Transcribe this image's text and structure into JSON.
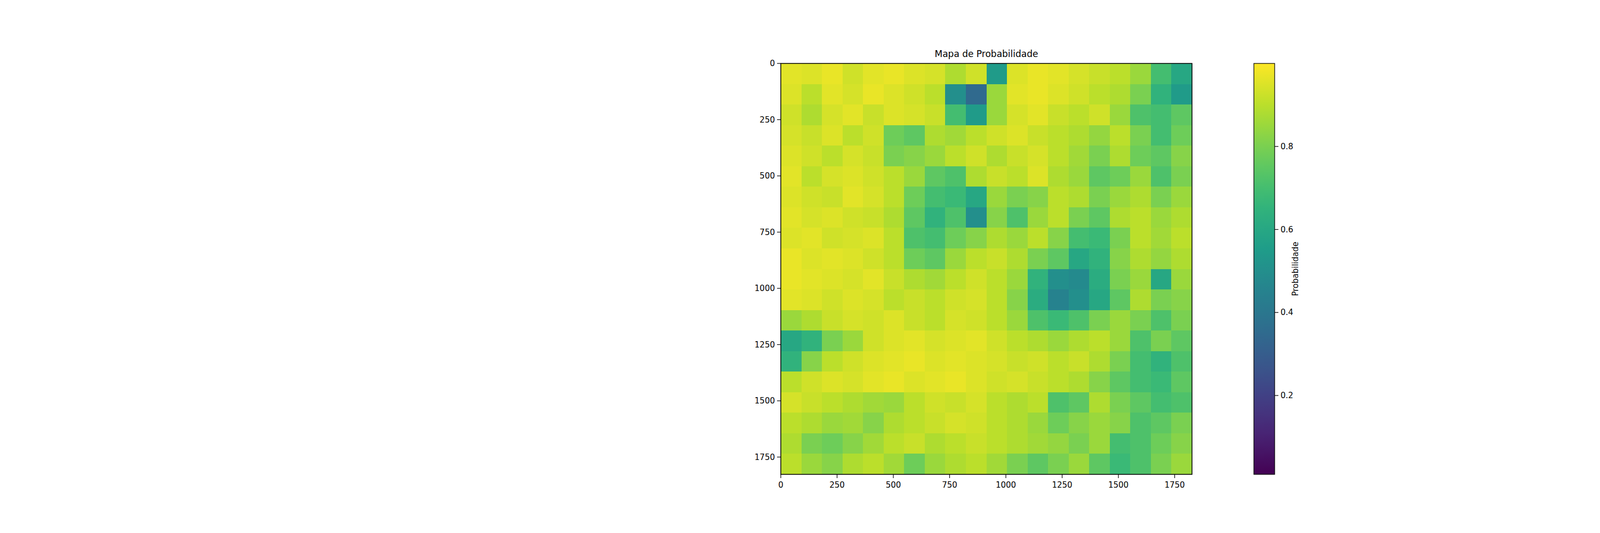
{
  "chart_data": {
    "type": "heatmap",
    "title": "Mapa de Probabilidade",
    "xlim": [
      0,
      1827
    ],
    "ylim": [
      1827,
      0
    ],
    "xticks": [
      0,
      250,
      500,
      750,
      1000,
      1250,
      1500,
      1750
    ],
    "yticks": [
      0,
      250,
      500,
      750,
      1000,
      1250,
      1500,
      1750
    ],
    "colorbar_label": "Probabilidade",
    "colorbar_range": [
      0.01,
      1.0
    ],
    "colorbar_ticks": [
      0.2,
      0.4,
      0.6,
      0.8
    ],
    "cells": [
      [
        0.96,
        0.95,
        0.97,
        0.93,
        0.96,
        0.97,
        0.95,
        0.94,
        0.88,
        0.93,
        0.55,
        0.95,
        0.97,
        0.96,
        0.94,
        0.92,
        0.9,
        0.85,
        0.7,
        0.6
      ],
      [
        0.95,
        0.9,
        0.96,
        0.94,
        0.97,
        0.95,
        0.93,
        0.9,
        0.5,
        0.35,
        0.85,
        0.96,
        0.97,
        0.95,
        0.93,
        0.9,
        0.88,
        0.8,
        0.65,
        0.55
      ],
      [
        0.93,
        0.88,
        0.94,
        0.96,
        0.92,
        0.95,
        0.94,
        0.92,
        0.7,
        0.55,
        0.85,
        0.94,
        0.96,
        0.92,
        0.9,
        0.93,
        0.85,
        0.72,
        0.7,
        0.75
      ],
      [
        0.94,
        0.92,
        0.95,
        0.9,
        0.93,
        0.78,
        0.75,
        0.88,
        0.86,
        0.9,
        0.93,
        0.95,
        0.92,
        0.9,
        0.88,
        0.84,
        0.9,
        0.8,
        0.7,
        0.78
      ],
      [
        0.95,
        0.93,
        0.9,
        0.94,
        0.92,
        0.8,
        0.82,
        0.85,
        0.9,
        0.93,
        0.88,
        0.92,
        0.94,
        0.9,
        0.86,
        0.8,
        0.88,
        0.78,
        0.75,
        0.82
      ],
      [
        0.96,
        0.9,
        0.94,
        0.95,
        0.93,
        0.9,
        0.85,
        0.75,
        0.72,
        0.88,
        0.92,
        0.9,
        0.95,
        0.88,
        0.85,
        0.75,
        0.78,
        0.85,
        0.72,
        0.8
      ],
      [
        0.95,
        0.93,
        0.92,
        0.96,
        0.94,
        0.9,
        0.78,
        0.7,
        0.68,
        0.6,
        0.85,
        0.8,
        0.82,
        0.9,
        0.88,
        0.8,
        0.85,
        0.88,
        0.8,
        0.85
      ],
      [
        0.96,
        0.94,
        0.95,
        0.93,
        0.92,
        0.88,
        0.75,
        0.65,
        0.72,
        0.5,
        0.82,
        0.72,
        0.85,
        0.9,
        0.8,
        0.75,
        0.88,
        0.9,
        0.85,
        0.88
      ],
      [
        0.95,
        0.96,
        0.93,
        0.94,
        0.95,
        0.9,
        0.72,
        0.7,
        0.78,
        0.82,
        0.88,
        0.85,
        0.9,
        0.82,
        0.7,
        0.68,
        0.8,
        0.9,
        0.86,
        0.9
      ],
      [
        0.97,
        0.95,
        0.96,
        0.95,
        0.93,
        0.9,
        0.78,
        0.75,
        0.85,
        0.9,
        0.92,
        0.88,
        0.8,
        0.75,
        0.6,
        0.65,
        0.82,
        0.88,
        0.84,
        0.88
      ],
      [
        0.97,
        0.96,
        0.95,
        0.94,
        0.96,
        0.92,
        0.88,
        0.86,
        0.9,
        0.93,
        0.9,
        0.85,
        0.65,
        0.5,
        0.48,
        0.62,
        0.8,
        0.85,
        0.6,
        0.85
      ],
      [
        0.96,
        0.95,
        0.93,
        0.95,
        0.94,
        0.9,
        0.92,
        0.9,
        0.93,
        0.94,
        0.9,
        0.82,
        0.62,
        0.45,
        0.5,
        0.6,
        0.75,
        0.88,
        0.8,
        0.82
      ],
      [
        0.85,
        0.88,
        0.92,
        0.94,
        0.93,
        0.95,
        0.92,
        0.9,
        0.94,
        0.93,
        0.9,
        0.85,
        0.72,
        0.68,
        0.72,
        0.8,
        0.85,
        0.8,
        0.72,
        0.8
      ],
      [
        0.6,
        0.65,
        0.8,
        0.85,
        0.93,
        0.95,
        0.96,
        0.94,
        0.95,
        0.96,
        0.93,
        0.9,
        0.88,
        0.85,
        0.88,
        0.9,
        0.85,
        0.72,
        0.8,
        0.75
      ],
      [
        0.65,
        0.82,
        0.9,
        0.93,
        0.95,
        0.96,
        0.97,
        0.95,
        0.96,
        0.95,
        0.94,
        0.92,
        0.93,
        0.9,
        0.92,
        0.88,
        0.8,
        0.7,
        0.65,
        0.72
      ],
      [
        0.9,
        0.93,
        0.95,
        0.94,
        0.96,
        0.97,
        0.95,
        0.96,
        0.97,
        0.95,
        0.93,
        0.94,
        0.92,
        0.9,
        0.88,
        0.82,
        0.75,
        0.7,
        0.68,
        0.75
      ],
      [
        0.94,
        0.92,
        0.9,
        0.88,
        0.86,
        0.85,
        0.9,
        0.93,
        0.92,
        0.94,
        0.9,
        0.88,
        0.9,
        0.72,
        0.75,
        0.88,
        0.8,
        0.75,
        0.7,
        0.72
      ],
      [
        0.9,
        0.88,
        0.85,
        0.86,
        0.82,
        0.88,
        0.9,
        0.92,
        0.94,
        0.93,
        0.9,
        0.88,
        0.85,
        0.78,
        0.82,
        0.85,
        0.82,
        0.72,
        0.75,
        0.8
      ],
      [
        0.88,
        0.8,
        0.78,
        0.82,
        0.86,
        0.9,
        0.92,
        0.88,
        0.9,
        0.92,
        0.9,
        0.88,
        0.86,
        0.84,
        0.8,
        0.85,
        0.7,
        0.72,
        0.78,
        0.82
      ],
      [
        0.9,
        0.85,
        0.82,
        0.88,
        0.9,
        0.86,
        0.78,
        0.85,
        0.88,
        0.9,
        0.86,
        0.8,
        0.75,
        0.8,
        0.85,
        0.75,
        0.68,
        0.72,
        0.8,
        0.85
      ]
    ]
  }
}
